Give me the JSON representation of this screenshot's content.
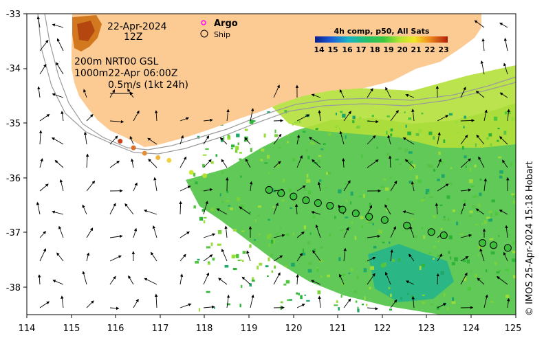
{
  "header": {
    "date": "22-Apr-2024",
    "hour": "12Z",
    "argo_label": "Argo",
    "ship_label": "Ship",
    "line1": "200m  NRT00 GSL",
    "line2": "1000m22-Apr 06:00Z",
    "scale_text": "0.5m/s (1kt 24h)"
  },
  "colorbar": {
    "title": "4h comp, p50, All Sats",
    "ticks": [
      "14",
      "15",
      "16",
      "17",
      "18",
      "19",
      "20",
      "21",
      "22",
      "23"
    ]
  },
  "credit": "© IMOS 25-Apr-2024 15:18 Hobart",
  "axes": {
    "x_ticks": [
      "114",
      "115",
      "116",
      "117",
      "118",
      "119",
      "120",
      "121",
      "122",
      "123",
      "124",
      "125"
    ],
    "y_ticks": [
      "-33",
      "-34",
      "-35",
      "-36",
      "-37",
      "-38"
    ]
  },
  "colors": {
    "land": "#FCCB94",
    "argo": "#ff00ff",
    "sst_green": "#3cc03c",
    "sst_yellow": "#c8e832",
    "sst_teal": "#22b38a"
  },
  "ship_track": [
    [
      119.45,
      -36.22
    ],
    [
      119.72,
      -36.28
    ],
    [
      120.0,
      -36.34
    ],
    [
      120.28,
      -36.41
    ],
    [
      120.55,
      -36.46
    ],
    [
      120.82,
      -36.51
    ],
    [
      121.1,
      -36.58
    ],
    [
      121.4,
      -36.65
    ],
    [
      121.7,
      -36.71
    ],
    [
      122.05,
      -36.77
    ],
    [
      122.55,
      -36.87
    ],
    [
      123.1,
      -36.99
    ],
    [
      123.38,
      -37.05
    ],
    [
      124.25,
      -37.19
    ],
    [
      124.5,
      -37.23
    ],
    [
      124.82,
      -37.28
    ]
  ],
  "warm_points": [
    [
      116.1,
      -35.33
    ],
    [
      116.4,
      -35.45
    ],
    [
      116.65,
      -35.55
    ],
    [
      116.95,
      -35.63
    ],
    [
      117.2,
      -35.68
    ],
    [
      117.7,
      -35.9
    ],
    [
      118.0,
      -35.96
    ]
  ]
}
